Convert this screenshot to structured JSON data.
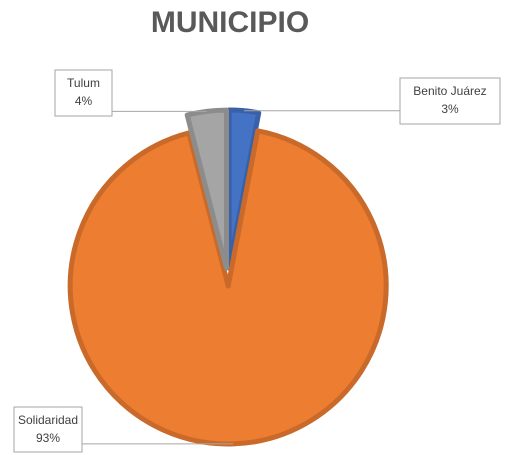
{
  "chart_data": {
    "type": "pie",
    "title": "MUNICIPIO",
    "categories": [
      "Benito Juárez",
      "Solidaridad",
      "Tulum"
    ],
    "values": [
      3,
      93,
      4
    ],
    "value_labels": [
      "3%",
      "93%",
      "4%"
    ],
    "colors": [
      "#4472c4",
      "#ed7d31",
      "#a5a5a5"
    ]
  }
}
